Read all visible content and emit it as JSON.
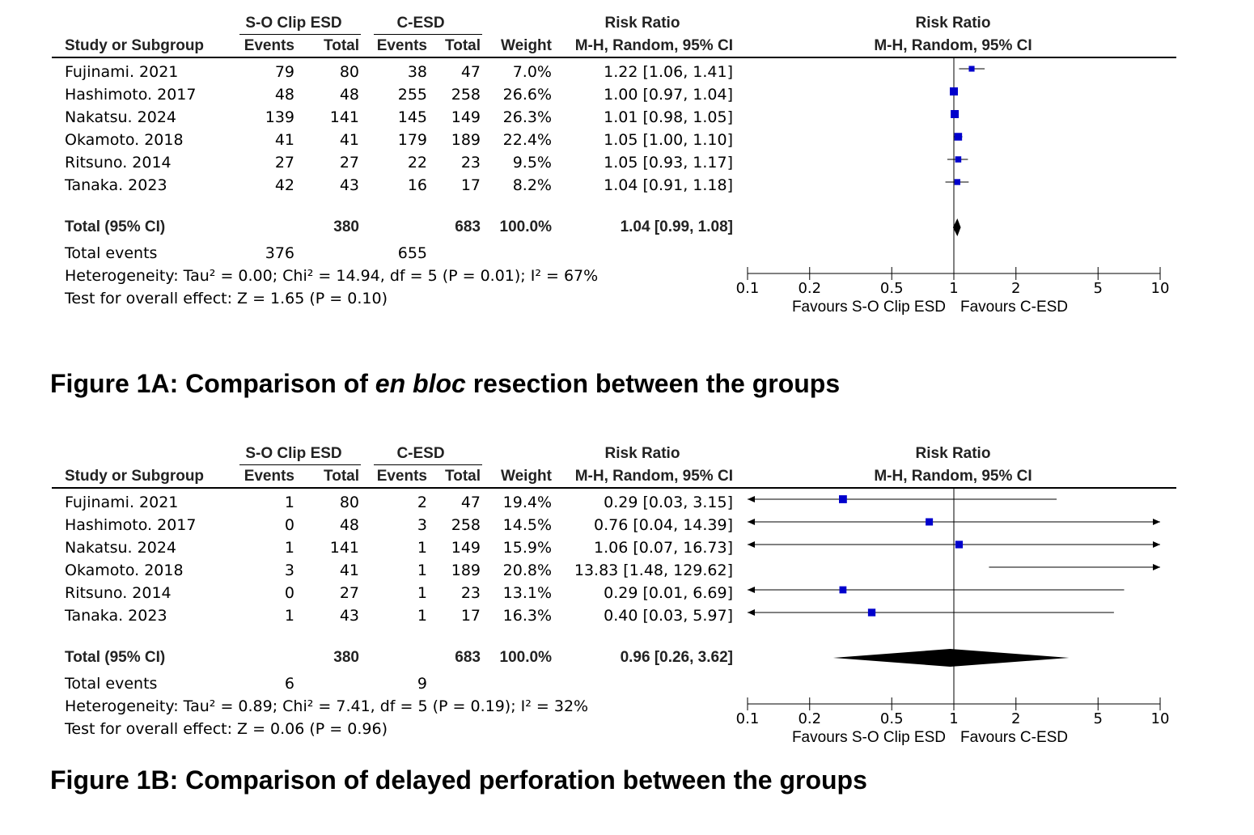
{
  "header": {
    "group1": "S-O Clip ESD",
    "group2": "C-ESD",
    "rr_title": "Risk Ratio",
    "study_col": "Study or Subgroup",
    "events": "Events",
    "total": "Total",
    "weight": "Weight",
    "method": "M-H, Random, 95% CI"
  },
  "axis": {
    "ticks": [
      0.1,
      0.2,
      0.5,
      1,
      2,
      5,
      10
    ],
    "tick_labels": [
      "0.1",
      "0.2",
      "0.5",
      "1",
      "2",
      "5",
      "10"
    ],
    "favours_left": "Favours S-O Clip ESD",
    "favours_right": "Favours C-ESD",
    "scale": "log"
  },
  "colors": {
    "marker": "#0000cc",
    "line": "#000000"
  },
  "panels": [
    {
      "caption_pre": "Figure 1A: Comparison of ",
      "caption_em": "en bloc",
      "caption_post": " resection between the groups",
      "total_row": {
        "label": "Total (95% CI)",
        "t1": "380",
        "t2": "683",
        "weight": "100.0%",
        "ci": "1.04 [0.99, 1.08]"
      },
      "events_row": {
        "label": "Total events",
        "e1": "376",
        "e2": "655"
      },
      "heterogeneity": "Heterogeneity: Tau² = 0.00; Chi² = 14.94, df = 5 (P = 0.01); I² = 67%",
      "overall": "Test for overall effect: Z = 1.65 (P = 0.10)"
    },
    {
      "caption_pre": "Figure 1B: Comparison of delayed perforation between the groups",
      "caption_em": "",
      "caption_post": "",
      "total_row": {
        "label": "Total (95% CI)",
        "t1": "380",
        "t2": "683",
        "weight": "100.0%",
        "ci": "0.96 [0.26, 3.62]"
      },
      "events_row": {
        "label": "Total events",
        "e1": "6",
        "e2": "9"
      },
      "heterogeneity": "Heterogeneity: Tau² = 0.89; Chi² = 7.41, df = 5 (P = 0.19); I² = 32%",
      "overall": "Test for overall effect: Z = 0.06 (P = 0.96)"
    }
  ],
  "chart_data": [
    {
      "type": "forest",
      "xlim": [
        0.1,
        10
      ],
      "studies": [
        {
          "study": "Fujinami. 2021",
          "e1": "79",
          "t1": "80",
          "e2": "38",
          "t2": "47",
          "weight": "7.0%",
          "ci_text": "1.22 [1.06, 1.41]",
          "rr": 1.22,
          "lo": 1.06,
          "hi": 1.41,
          "w": 7.0
        },
        {
          "study": "Hashimoto. 2017",
          "e1": "48",
          "t1": "48",
          "e2": "255",
          "t2": "258",
          "weight": "26.6%",
          "ci_text": "1.00 [0.97, 1.04]",
          "rr": 1.0,
          "lo": 0.97,
          "hi": 1.04,
          "w": 26.6
        },
        {
          "study": "Nakatsu. 2024",
          "e1": "139",
          "t1": "141",
          "e2": "145",
          "t2": "149",
          "weight": "26.3%",
          "ci_text": "1.01 [0.98, 1.05]",
          "rr": 1.01,
          "lo": 0.98,
          "hi": 1.05,
          "w": 26.3
        },
        {
          "study": "Okamoto. 2018",
          "e1": "41",
          "t1": "41",
          "e2": "179",
          "t2": "189",
          "weight": "22.4%",
          "ci_text": "1.05 [1.00, 1.10]",
          "rr": 1.05,
          "lo": 1.0,
          "hi": 1.1,
          "w": 22.4
        },
        {
          "study": "Ritsuno. 2014",
          "e1": "27",
          "t1": "27",
          "e2": "22",
          "t2": "23",
          "weight": "9.5%",
          "ci_text": "1.05 [0.93, 1.17]",
          "rr": 1.05,
          "lo": 0.93,
          "hi": 1.17,
          "w": 9.5
        },
        {
          "study": "Tanaka. 2023",
          "e1": "42",
          "t1": "43",
          "e2": "16",
          "t2": "17",
          "weight": "8.2%",
          "ci_text": "1.04 [0.91, 1.18]",
          "rr": 1.04,
          "lo": 0.91,
          "hi": 1.18,
          "w": 8.2
        }
      ],
      "pooled": {
        "rr": 1.04,
        "lo": 0.99,
        "hi": 1.08
      }
    },
    {
      "type": "forest",
      "xlim": [
        0.1,
        10
      ],
      "studies": [
        {
          "study": "Fujinami. 2021",
          "e1": "1",
          "t1": "80",
          "e2": "2",
          "t2": "47",
          "weight": "19.4%",
          "ci_text": "0.29 [0.03, 3.15]",
          "rr": 0.29,
          "lo": 0.03,
          "hi": 3.15,
          "w": 19.4
        },
        {
          "study": "Hashimoto. 2017",
          "e1": "0",
          "t1": "48",
          "e2": "3",
          "t2": "258",
          "weight": "14.5%",
          "ci_text": "0.76 [0.04, 14.39]",
          "rr": 0.76,
          "lo": 0.04,
          "hi": 14.39,
          "w": 14.5
        },
        {
          "study": "Nakatsu. 2024",
          "e1": "1",
          "t1": "141",
          "e2": "1",
          "t2": "149",
          "weight": "15.9%",
          "ci_text": "1.06 [0.07, 16.73]",
          "rr": 1.06,
          "lo": 0.07,
          "hi": 16.73,
          "w": 15.9
        },
        {
          "study": "Okamoto. 2018",
          "e1": "3",
          "t1": "41",
          "e2": "1",
          "t2": "189",
          "weight": "20.8%",
          "ci_text": "13.83 [1.48, 129.62]",
          "rr": 13.83,
          "lo": 1.48,
          "hi": 129.62,
          "w": 20.8
        },
        {
          "study": "Ritsuno. 2014",
          "e1": "0",
          "t1": "27",
          "e2": "1",
          "t2": "23",
          "weight": "13.1%",
          "ci_text": "0.29 [0.01, 6.69]",
          "rr": 0.29,
          "lo": 0.01,
          "hi": 6.69,
          "w": 13.1
        },
        {
          "study": "Tanaka. 2023",
          "e1": "1",
          "t1": "43",
          "e2": "1",
          "t2": "17",
          "weight": "16.3%",
          "ci_text": "0.40 [0.03, 5.97]",
          "rr": 0.4,
          "lo": 0.03,
          "hi": 5.97,
          "w": 16.3
        }
      ],
      "pooled": {
        "rr": 0.96,
        "lo": 0.26,
        "hi": 3.62
      }
    }
  ]
}
